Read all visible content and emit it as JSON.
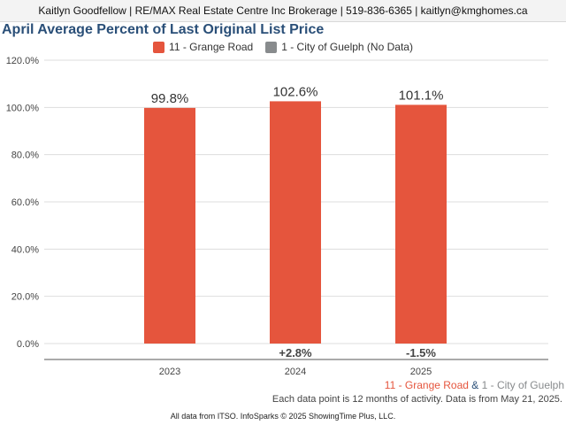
{
  "header": {
    "text": "Kaitlyn Goodfellow | RE/MAX Real Estate Centre Inc Brokerage | 519-836-6365 | kaitlyn@kmghomes.ca"
  },
  "chart_data": {
    "type": "bar",
    "title": "April Average Percent of Last Original List Price",
    "categories": [
      "2023",
      "2024",
      "2025"
    ],
    "series": [
      {
        "name": "11 - Grange Road",
        "color": "#e5553d",
        "values": [
          99.8,
          102.6,
          101.1
        ],
        "value_labels": [
          "99.8%",
          "102.6%",
          "101.1%"
        ],
        "change_labels": [
          "",
          "+2.8%",
          "-1.5%"
        ]
      },
      {
        "name": "1 - City of Guelph (No Data)",
        "color": "#888b8d",
        "values": [
          null,
          null,
          null
        ]
      }
    ],
    "ylim": [
      0,
      120
    ],
    "yticks": [
      0,
      20,
      40,
      60,
      80,
      100,
      120
    ],
    "ytick_labels": [
      "0.0%",
      "20.0%",
      "40.0%",
      "60.0%",
      "80.0%",
      "100.0%",
      "120.0%"
    ],
    "grid": true,
    "legend_position": "top-center"
  },
  "footer": {
    "legend_primary": "11 - Grange Road",
    "legend_primary_color": "#e5553d",
    "legend_sep": " & ",
    "legend_secondary": "1 - City of Guelph",
    "legend_secondary_color": "#888b8d",
    "note": "Each data point is 12 months of activity. Data is from May 21, 2025.",
    "source": "All data from ITSO. InfoSparks © 2025 ShowingTime Plus, LLC."
  }
}
